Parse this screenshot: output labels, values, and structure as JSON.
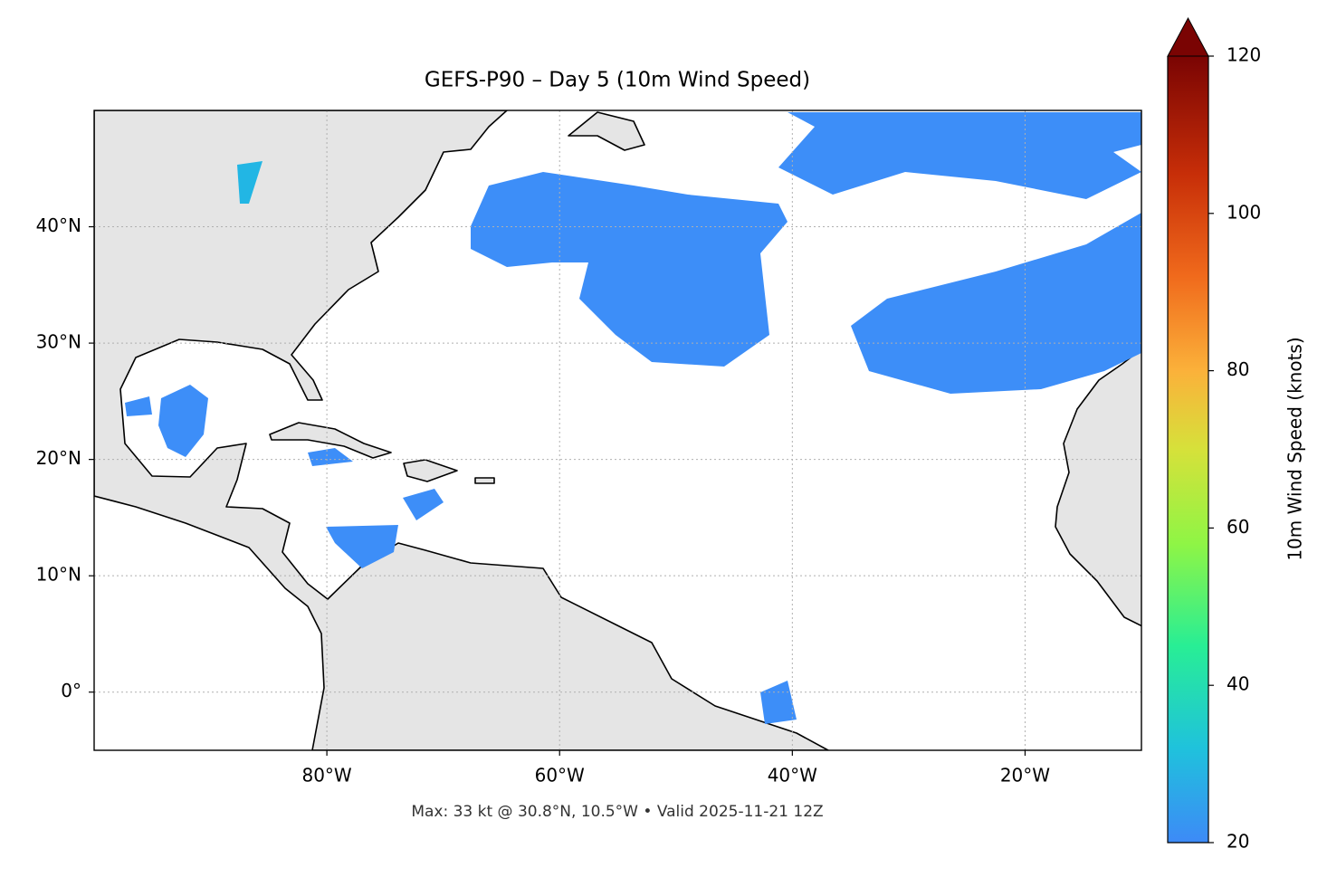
{
  "chart_data": {
    "type": "map",
    "title": "GEFS-P90 – Day 5 (10m Wind Speed)",
    "note": "Max: 33 kt @ 30.8°N, 10.5°W • Valid 2025-11-21 12Z",
    "xlim": [
      -100,
      -10
    ],
    "ylim": [
      -5,
      50
    ],
    "xticks": [
      {
        "value": -80,
        "label": "80°W"
      },
      {
        "value": -60,
        "label": "60°W"
      },
      {
        "value": -40,
        "label": "40°W"
      },
      {
        "value": -20,
        "label": "20°W"
      }
    ],
    "yticks": [
      {
        "value": 0,
        "label": "0°"
      },
      {
        "value": 10,
        "label": "10°N"
      },
      {
        "value": 20,
        "label": "20°N"
      },
      {
        "value": 30,
        "label": "30°N"
      },
      {
        "value": 40,
        "label": "40°N"
      }
    ],
    "grid": true,
    "colorbar": {
      "label": "10m Wind Speed (knots)",
      "lim": [
        20,
        120
      ],
      "ticks": [
        20,
        40,
        60,
        80,
        100,
        120
      ],
      "extend": "max"
    }
  }
}
